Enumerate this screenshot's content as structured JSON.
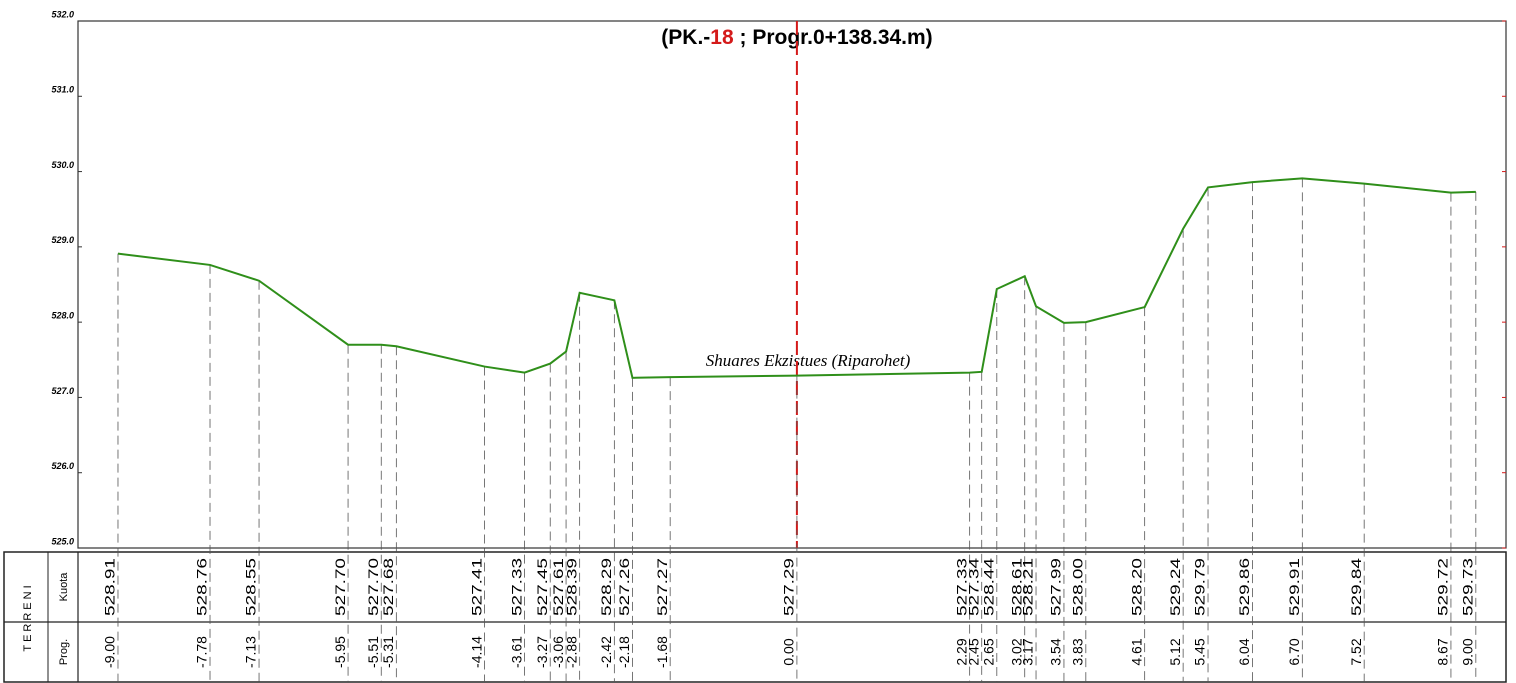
{
  "chart_data": {
    "type": "line",
    "title_parts": [
      "(PK.-",
      "18",
      " ; Progr.0+138.34.m)"
    ],
    "annotation": "Shuares Ekzistues (Riparohet)",
    "table_title": "TERRENI",
    "row_labels": [
      "Kuota",
      "Prog."
    ],
    "x": [
      -9.0,
      -7.78,
      -7.13,
      -5.95,
      -5.51,
      -5.31,
      -4.14,
      -3.61,
      -3.27,
      -3.06,
      -2.88,
      -2.42,
      -2.18,
      -1.68,
      0.0,
      2.29,
      2.45,
      2.65,
      3.02,
      3.17,
      3.54,
      3.83,
      4.61,
      5.12,
      5.45,
      6.04,
      6.7,
      7.52,
      8.67,
      9.0
    ],
    "x_labels": [
      "-9.00",
      "-7.78",
      "-7.13",
      "-5.95",
      "-5.51",
      "-5.31",
      "-4.14",
      "-3.61",
      "-3.27",
      "-3.06",
      "-2.88",
      "-2.42",
      "-2.18",
      "-1.68",
      "0.00",
      "2.29",
      "2.45",
      "2.65",
      "3.02",
      "3.17",
      "3.54",
      "3.83",
      "4.61",
      "5.12",
      "5.45",
      "6.04",
      "6.70",
      "7.52",
      "8.67",
      "9.00"
    ],
    "values": [
      528.91,
      528.76,
      528.55,
      527.7,
      527.7,
      527.68,
      527.41,
      527.33,
      527.45,
      527.61,
      528.39,
      528.29,
      527.26,
      527.27,
      527.29,
      527.33,
      527.34,
      528.44,
      528.61,
      528.21,
      527.99,
      528.0,
      528.2,
      529.24,
      529.79,
      529.86,
      529.91,
      529.84,
      529.72,
      529.73
    ],
    "value_labels": [
      "528.91",
      "528.76",
      "528.55",
      "527.70",
      "527.70",
      "527.68",
      "527.41",
      "527.33",
      "527.45",
      "527.61",
      "528.39",
      "528.29",
      "527.26",
      "527.27",
      "527.29",
      "527.33",
      "527.34",
      "528.44",
      "528.61",
      "528.21",
      "527.99",
      "528.00",
      "528.20",
      "529.24",
      "529.79",
      "529.86",
      "529.91",
      "529.84",
      "529.72",
      "529.73"
    ],
    "color": "#2f8f1a",
    "xlim": [
      -9.53,
      9.4
    ],
    "ylim": [
      525,
      532
    ],
    "yticks": [
      {
        "value": 525,
        "label": "525.0"
      },
      {
        "value": 526,
        "label": "526.0"
      },
      {
        "value": 527,
        "label": "527.0"
      },
      {
        "value": 528,
        "label": "528.0"
      },
      {
        "value": 529,
        "label": "529.0"
      },
      {
        "value": 530,
        "label": "530.0"
      },
      {
        "value": 531,
        "label": "531.0"
      },
      {
        "value": 532,
        "label": "532.0"
      }
    ],
    "grid": false
  }
}
